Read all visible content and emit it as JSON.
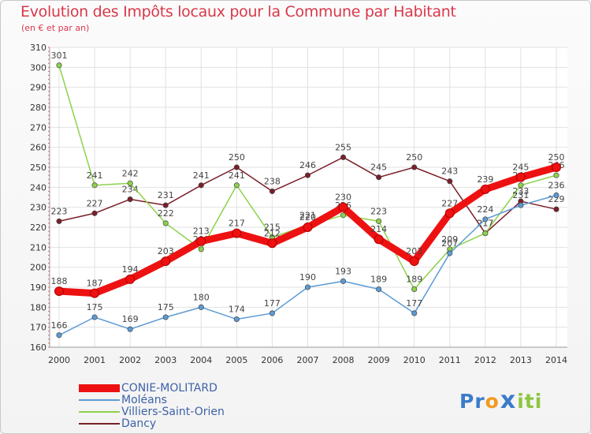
{
  "header": {
    "title": "Evolution des Impôts locaux pour la Commune par Habitant",
    "subtitle": "(en € et par an)"
  },
  "chart_data": {
    "type": "line",
    "title": "Evolution des Impôts locaux pour la Commune par Habitant",
    "subtitle": "(en € et par an)",
    "xlabel": "",
    "ylabel": "",
    "ylim": [
      160,
      310
    ],
    "yticks": [
      160,
      170,
      180,
      190,
      200,
      210,
      220,
      230,
      240,
      250,
      260,
      270,
      280,
      290,
      300,
      310
    ],
    "categories": [
      "2000",
      "2001",
      "2002",
      "2003",
      "2004",
      "2005",
      "2006",
      "2007",
      "2008",
      "2009",
      "2010",
      "2011",
      "2012",
      "2013",
      "2014"
    ],
    "grid": true,
    "legend_position": "bottom-left",
    "series": [
      {
        "name": "Dancy",
        "color": "#7a1f2a",
        "values": [
          223,
          227,
          234,
          231,
          241,
          250,
          238,
          246,
          255,
          245,
          250,
          243,
          217,
          233,
          229
        ]
      },
      {
        "name": "Villiers-Saint-Orien",
        "color": "#8cd24a",
        "values": [
          301,
          241,
          242,
          222,
          209,
          241,
          215,
          221,
          226,
          223,
          189,
          209,
          217,
          241,
          246
        ]
      },
      {
        "name": "Moléans",
        "color": "#5b9bd5",
        "values": [
          166,
          175,
          169,
          175,
          180,
          174,
          177,
          190,
          193,
          189,
          177,
          207,
          224,
          231,
          236
        ]
      },
      {
        "name": "CONIE-MOLITARD",
        "color": "#ee1111",
        "values": [
          188,
          187,
          194,
          203,
          213,
          217,
          212,
          220,
          230,
          214,
          203,
          227,
          239,
          245,
          250
        ]
      }
    ]
  },
  "legend": {
    "items": [
      {
        "label": "CONIE-MOLITARD",
        "color": "#ee1111"
      },
      {
        "label": "Moléans",
        "color": "#5b9bd5"
      },
      {
        "label": "Villiers-Saint-Orien",
        "color": "#8cd24a"
      },
      {
        "label": "Dancy",
        "color": "#7a1f2a"
      }
    ]
  },
  "logo": {
    "text": "Proxiti",
    "letters": [
      "P",
      "r",
      "o",
      "x",
      "i",
      "t",
      "i"
    ],
    "colors": [
      "#3a7cc9",
      "#3a7cc9",
      "#f29a1f",
      "#3a7cc9",
      "#8cc63f",
      "#8cc63f",
      "#8cc63f"
    ]
  }
}
